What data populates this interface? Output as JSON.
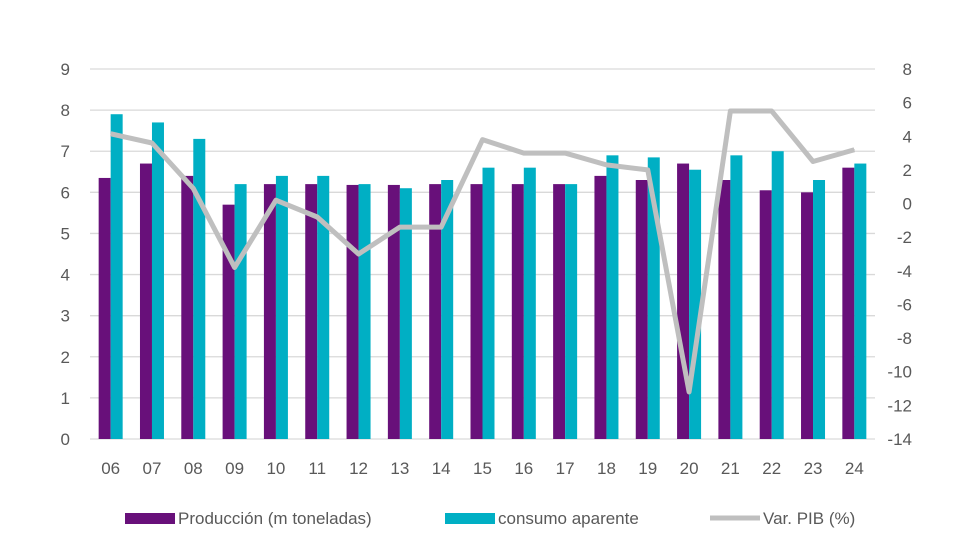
{
  "chart_data": {
    "type": "bar+line",
    "categories": [
      "06",
      "07",
      "08",
      "09",
      "10",
      "11",
      "12",
      "13",
      "14",
      "15",
      "16",
      "17",
      "18",
      "19",
      "20",
      "21",
      "22",
      "23",
      "24"
    ],
    "series": [
      {
        "name": "Producción (m toneladas)",
        "type": "bar",
        "axis": "left",
        "color": "#68107A",
        "values": [
          6.35,
          6.7,
          6.4,
          5.7,
          6.2,
          6.2,
          6.18,
          6.18,
          6.2,
          6.2,
          6.2,
          6.2,
          6.4,
          6.3,
          6.7,
          6.3,
          6.05,
          6.0,
          6.6
        ]
      },
      {
        "name": "consumo aparente",
        "type": "bar",
        "axis": "left",
        "color": "#00AFC4",
        "values": [
          7.9,
          7.7,
          7.3,
          6.2,
          6.4,
          6.4,
          6.2,
          6.1,
          6.3,
          6.6,
          6.6,
          6.2,
          6.9,
          6.85,
          6.55,
          6.9,
          7.0,
          6.3,
          6.7
        ]
      },
      {
        "name": "Var. PIB (%)",
        "type": "line",
        "axis": "right",
        "color": "#BFBFBF",
        "values": [
          4.15,
          3.6,
          0.9,
          -3.8,
          0.2,
          -0.8,
          -3.0,
          -1.4,
          -1.4,
          3.8,
          3.0,
          3.0,
          2.3,
          2.0,
          -11.2,
          5.5,
          5.5,
          2.5,
          3.2
        ]
      }
    ],
    "y_left": {
      "range": [
        0,
        9
      ],
      "ticks": [
        "0",
        "1",
        "2",
        "3",
        "4",
        "5",
        "6",
        "7",
        "8",
        "9"
      ]
    },
    "y_right": {
      "range": [
        -14,
        8
      ],
      "ticks": [
        "-14",
        "-12",
        "-10",
        "-8",
        "-6",
        "-4",
        "-2",
        "0",
        "2",
        "4",
        "6",
        "8"
      ]
    },
    "grid": true,
    "legend": "bottom"
  }
}
